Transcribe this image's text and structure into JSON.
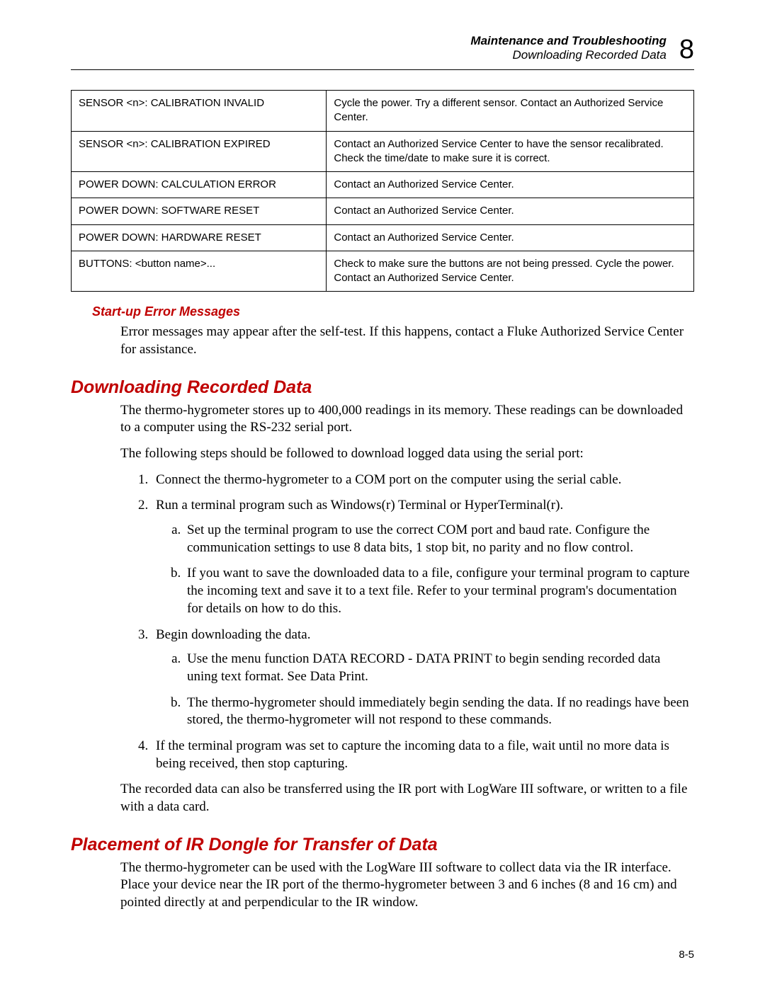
{
  "colors": {
    "heading_red": "#c00000",
    "text_black": "#000000",
    "background": "#ffffff",
    "border": "#000000"
  },
  "typography": {
    "body_font": "Times New Roman",
    "heading_font": "Arial",
    "body_size_pt": 14,
    "h2_size_pt": 19,
    "h3_size_pt": 13,
    "table_size_pt": 11
  },
  "header": {
    "line1": "Maintenance and Troubleshooting",
    "line2": "Downloading Recorded Data",
    "chapter": "8"
  },
  "table": {
    "rows": [
      {
        "c1": "SENSOR <n>: CALIBRATION INVALID",
        "c2": "Cycle the power. Try a different sensor. Contact an Authorized Service Center."
      },
      {
        "c1": "SENSOR <n>: CALIBRATION EXPIRED",
        "c2": "Contact an Authorized Service Center to have the sensor recalibrated. Check the time/date to make sure it is correct."
      },
      {
        "c1": "POWER DOWN: CALCULATION ERROR",
        "c2": "Contact an Authorized Service Center."
      },
      {
        "c1": "POWER DOWN: SOFTWARE RESET",
        "c2": "Contact an Authorized Service Center."
      },
      {
        "c1": "POWER DOWN: HARDWARE RESET",
        "c2": "Contact an Authorized Service Center."
      },
      {
        "c1": "BUTTONS: <button name>...",
        "c2": "Check to make sure the buttons are not being pressed. Cycle the power. Contact an Authorized Service Center."
      }
    ]
  },
  "section1": {
    "title": "Start-up Error Messages",
    "p1": "Error messages may appear after the self-test. If this happens, contact a Fluke Authorized Service Center for assistance."
  },
  "section2": {
    "title": "Downloading Recorded Data",
    "p1": "The thermo-hygrometer stores up to 400,000 readings in its memory. These readings can be downloaded to a computer using the RS-232 serial port.",
    "p2": "The following steps should be followed to download logged data using the serial port:",
    "steps": {
      "s1": "Connect the thermo-hygrometer to a COM port on the computer using the serial cable.",
      "s2": "Run a terminal program such as Windows(r) Terminal or HyperTerminal(r).",
      "s2a": "Set up the terminal program to use the correct COM port and baud rate. Configure the communication settings to use 8 data bits, 1 stop bit, no parity and no flow control.",
      "s2b": "If you want to save the downloaded data to a file, configure your terminal program to capture the incoming text and save it to a text file. Refer to your terminal program's documentation for details on how to do this.",
      "s3": "Begin downloading the data.",
      "s3a": "Use the menu function DATA RECORD - DATA PRINT to begin sending recorded data uning text format. See Data Print.",
      "s3b": "The thermo-hygrometer should immediately begin sending the data. If no readings have been stored, the thermo-hygrometer will not respond to these commands.",
      "s4": "If the terminal program was set to capture the incoming data to a file, wait until no more data is being received, then stop capturing."
    },
    "p3": "The recorded data can also be transferred using the IR port with LogWare III software, or written to a file with a data card."
  },
  "section3": {
    "title": "Placement of IR Dongle for Transfer of Data",
    "p1": "The thermo-hygrometer can be used with the LogWare III software to collect data via the IR interface. Place your device near the IR port of the thermo-hygrometer between 3 and 6 inches (8 and 16 cm) and pointed directly at and perpendicular to the IR window."
  },
  "footer": {
    "page": "8-5"
  }
}
